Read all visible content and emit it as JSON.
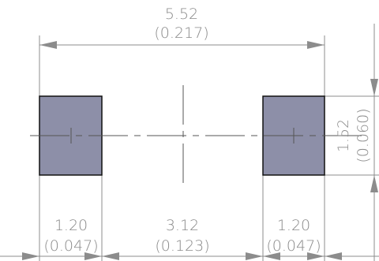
{
  "overall_width": {
    "value": "5.52",
    "inch": "(0.217)"
  },
  "pad_height": {
    "value": "1.52",
    "inch": "(0.060)"
  },
  "left_pad_width": {
    "value": "1.20",
    "inch": "(0.047)"
  },
  "pad_gap": {
    "value": "3.12",
    "inch": "(0.123)"
  },
  "right_pad_width": {
    "value": "1.20",
    "inch": "(0.047)"
  },
  "colors": {
    "pad_fill": "#8d8fa8",
    "pad_outline": "#111111",
    "dimension_lines": "#8c8c8c",
    "dimension_text": "#8a8a8a"
  }
}
